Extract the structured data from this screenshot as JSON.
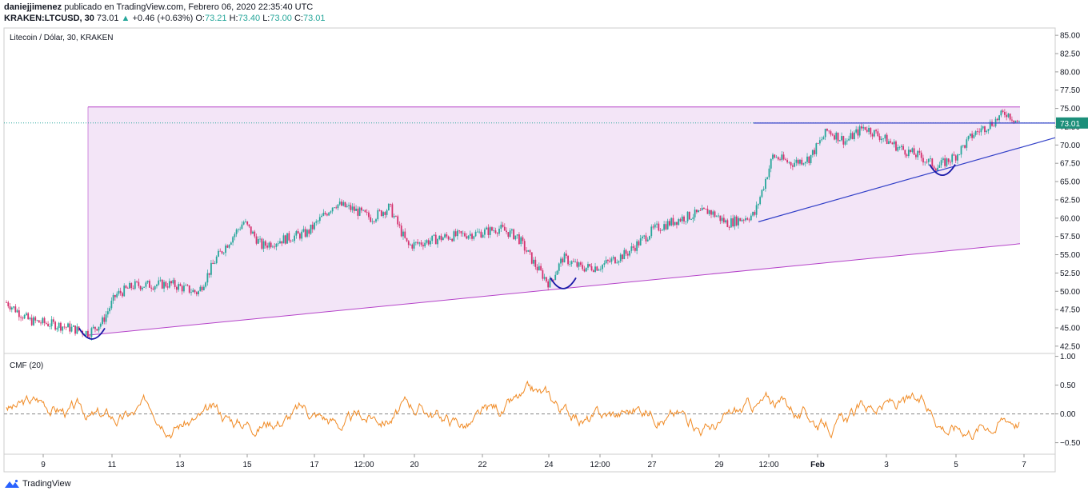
{
  "header": {
    "author": "daniejjimenez",
    "published_text": "publicado en TradingView.com, Febrero 06, 2020 22:35:40 UTC",
    "symbol": "KRAKEN:LTCUSD, 30",
    "last": "73.01",
    "change_arrow": "▲",
    "change": "+0.46 (+0.63%)",
    "o_label": "O:",
    "o_value": "73.21",
    "h_label": "H:",
    "h_value": "73.40",
    "l_label": "L:",
    "l_value": "73.00",
    "c_label": "C:",
    "c_value": "73.01"
  },
  "footer": {
    "brand": "TradingView",
    "logo_icon": "tradingview-logo-icon"
  },
  "colors": {
    "candle_up": "#26a69a",
    "candle_down": "#d5316e",
    "channel_fill": "#f3e5f7",
    "channel_line": "#b544c9",
    "trend_line": "#3240c8",
    "cmf_line": "#f08a24",
    "price_badge": "#1c8f7a",
    "grid_border": "#cccccc"
  },
  "chart_data": [
    {
      "type": "candlestick",
      "title": "Litecoin / Dólar, 30, KRAKEN",
      "ylim": [
        41.5,
        86
      ],
      "yticks": [
        "85.00",
        "82.50",
        "80.00",
        "77.50",
        "75.00",
        "72.50",
        "70.00",
        "67.50",
        "65.00",
        "62.50",
        "60.00",
        "57.50",
        "55.00",
        "52.50",
        "50.00",
        "47.50",
        "45.00",
        "42.50"
      ],
      "last_price": "73.01",
      "x_ticks": [
        "9",
        "11",
        "13",
        "15",
        "17",
        "12:00",
        "20",
        "22",
        "24",
        "12:00",
        "27",
        "29",
        "12:00",
        "Feb",
        "3",
        "5",
        "7"
      ],
      "approx_close_path": [
        {
          "x": 0,
          "y": 48.5
        },
        {
          "x": 2.5,
          "y": 46.0
        },
        {
          "x": 6,
          "y": 45.3
        },
        {
          "x": 9,
          "y": 44.3
        },
        {
          "x": 10.5,
          "y": 45.8
        },
        {
          "x": 12,
          "y": 49.5
        },
        {
          "x": 14,
          "y": 50.8
        },
        {
          "x": 18,
          "y": 51.0
        },
        {
          "x": 21,
          "y": 49.8
        },
        {
          "x": 23,
          "y": 54.5
        },
        {
          "x": 26,
          "y": 59.5
        },
        {
          "x": 28,
          "y": 56.2
        },
        {
          "x": 30,
          "y": 57.0
        },
        {
          "x": 33,
          "y": 58.0
        },
        {
          "x": 36,
          "y": 62.0
        },
        {
          "x": 38,
          "y": 61.2
        },
        {
          "x": 40,
          "y": 60.0
        },
        {
          "x": 42,
          "y": 61.5
        },
        {
          "x": 44,
          "y": 56.2
        },
        {
          "x": 48,
          "y": 57.4
        },
        {
          "x": 52,
          "y": 58.0
        },
        {
          "x": 54,
          "y": 58.6
        },
        {
          "x": 56,
          "y": 57.5
        },
        {
          "x": 58,
          "y": 53.5
        },
        {
          "x": 59.5,
          "y": 51.0
        },
        {
          "x": 61,
          "y": 54.6
        },
        {
          "x": 63,
          "y": 53.2
        },
        {
          "x": 65,
          "y": 53.4
        },
        {
          "x": 68,
          "y": 55.2
        },
        {
          "x": 71,
          "y": 58.5
        },
        {
          "x": 74,
          "y": 60.0
        },
        {
          "x": 77,
          "y": 61.0
        },
        {
          "x": 79,
          "y": 59.3
        },
        {
          "x": 82,
          "y": 60.5
        },
        {
          "x": 84,
          "y": 68.5
        },
        {
          "x": 86,
          "y": 67.5
        },
        {
          "x": 88,
          "y": 68.2
        },
        {
          "x": 90,
          "y": 72.0
        },
        {
          "x": 92,
          "y": 70.5
        },
        {
          "x": 94,
          "y": 72.5
        },
        {
          "x": 96,
          "y": 71.0
        },
        {
          "x": 98,
          "y": 69.5
        },
        {
          "x": 100,
          "y": 68.5
        },
        {
          "x": 102,
          "y": 67.0
        },
        {
          "x": 104,
          "y": 68.5
        },
        {
          "x": 106,
          "y": 71.5
        },
        {
          "x": 108,
          "y": 73.0
        },
        {
          "x": 109.5,
          "y": 74.5
        },
        {
          "x": 111,
          "y": 73.0
        }
      ],
      "annotations": {
        "channel_top": 75.2,
        "channel_bottom_start": 44.0,
        "channel_bottom_end": 56.5,
        "resistance": 73.0,
        "support_start": 59.5,
        "support_end": 71.0
      }
    },
    {
      "type": "line",
      "title": "CMF (20)",
      "ylim": [
        -0.7,
        1.05
      ],
      "yticks": [
        "1.00",
        "0.50",
        "0.00",
        "−0.50"
      ],
      "zero_line": 0.0
    }
  ]
}
